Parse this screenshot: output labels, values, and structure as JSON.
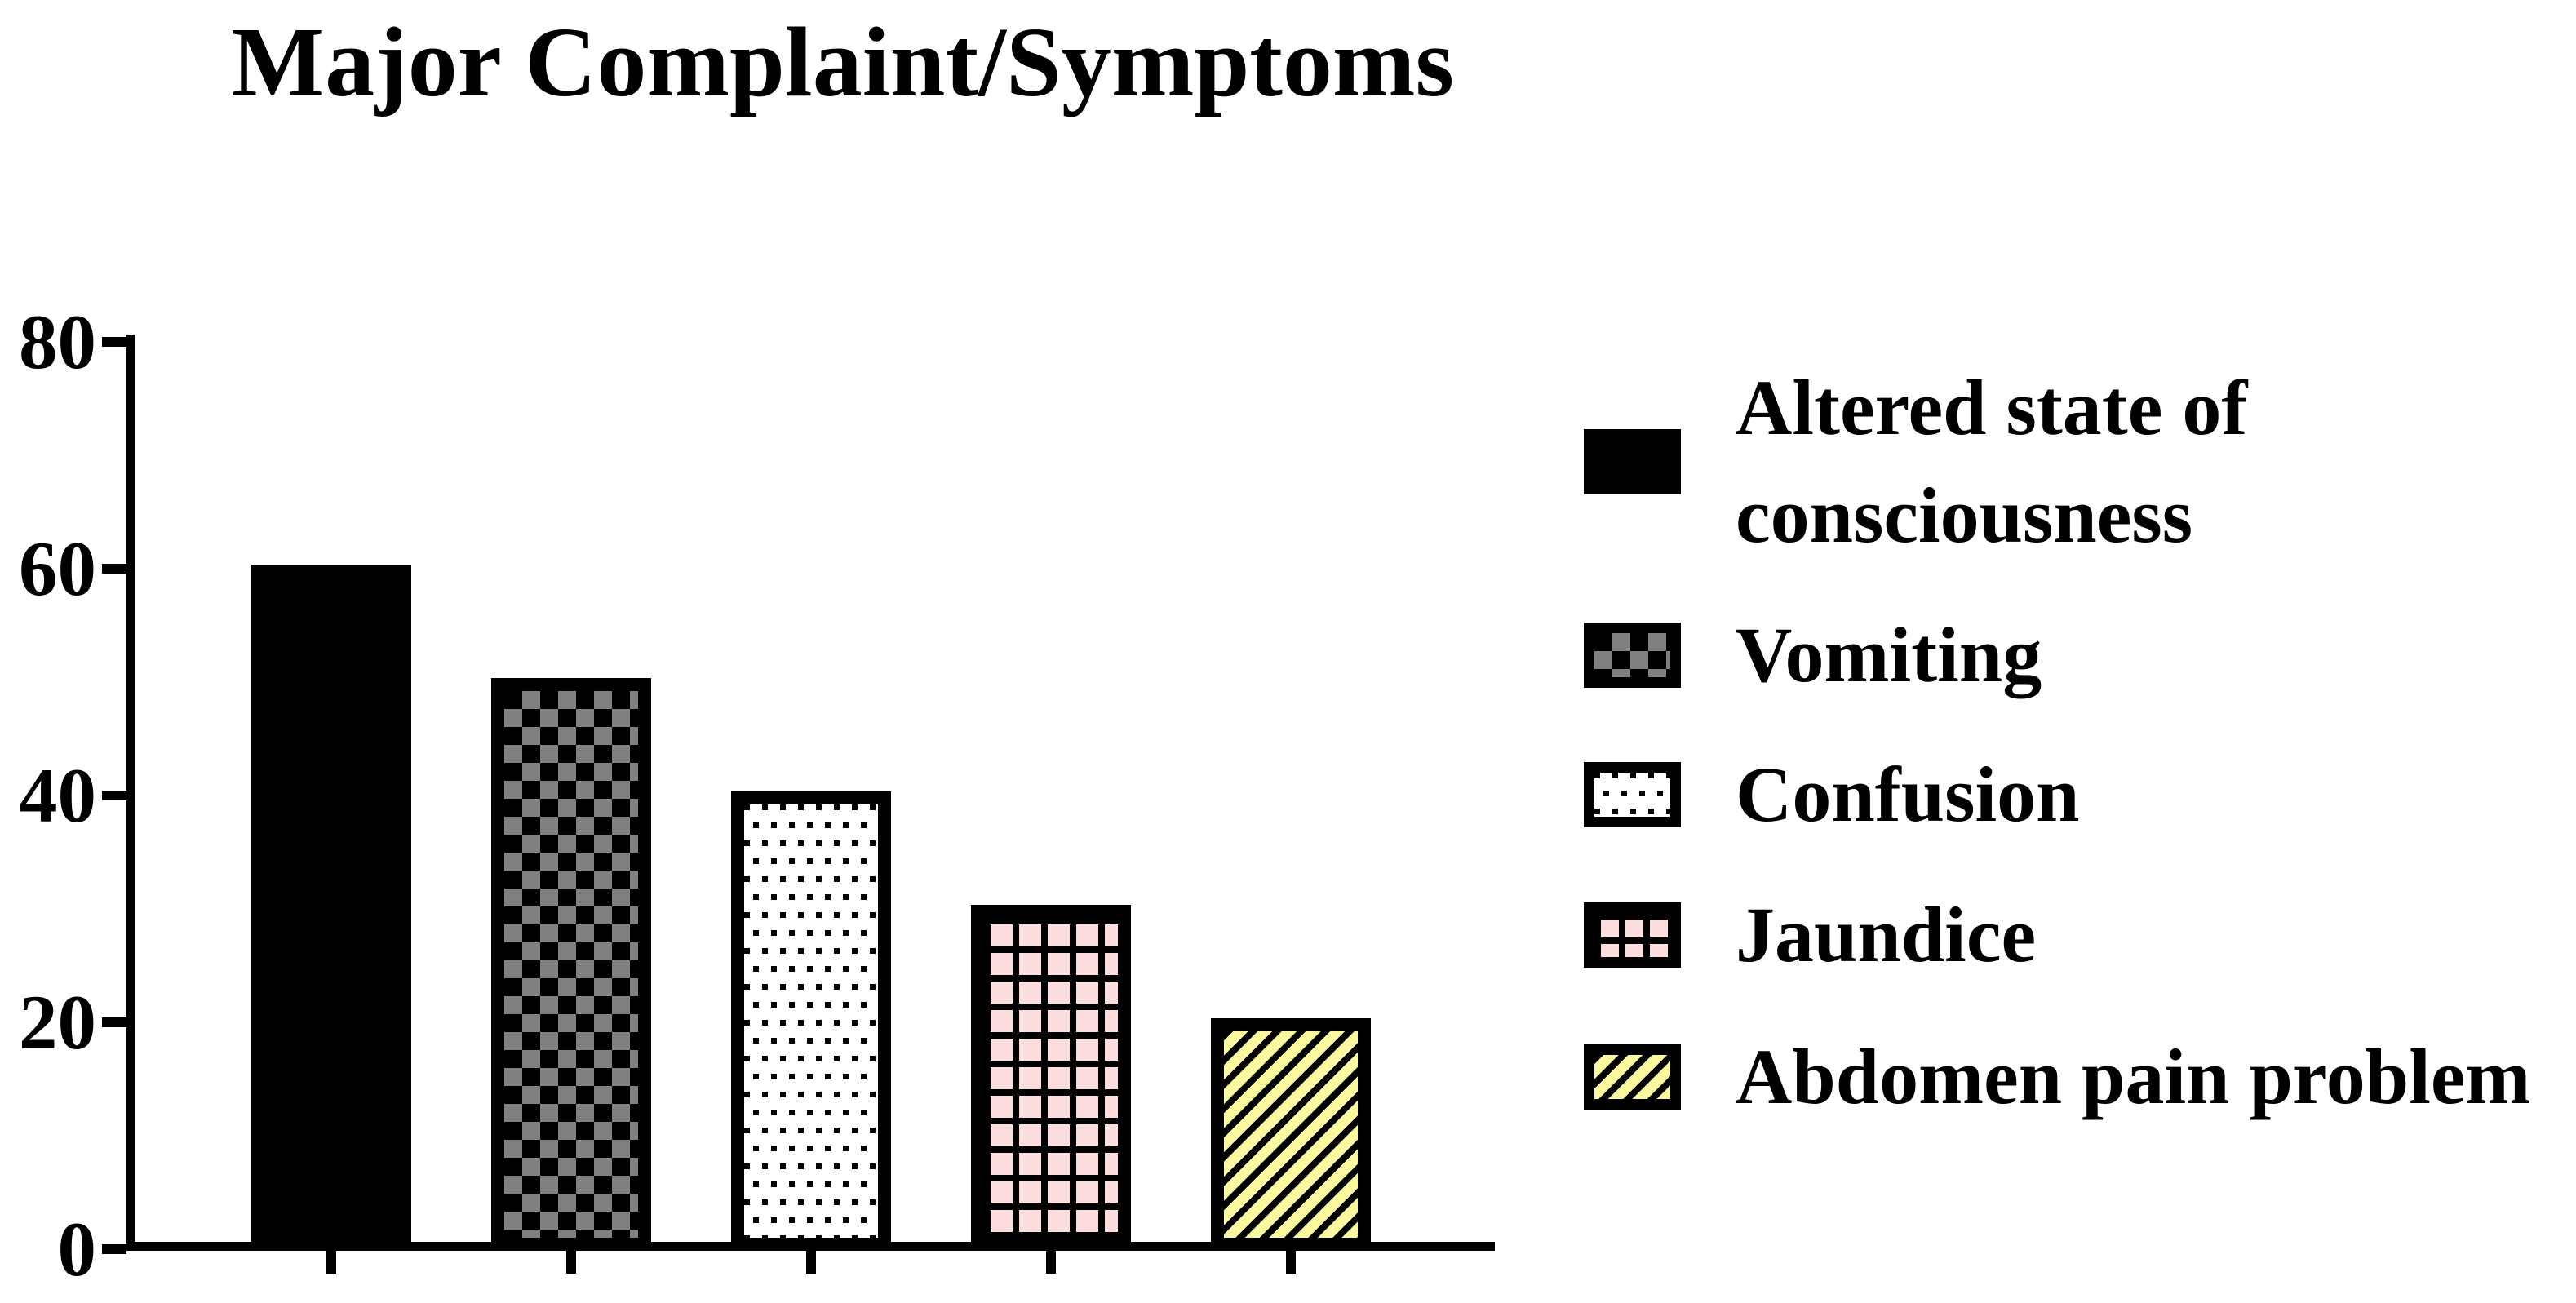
{
  "title": "Major Complaint/Symptoms",
  "colors": {
    "ink": "#000000",
    "checker_gray": "#808080",
    "grid_pink": "#FCDEDE",
    "stripe_yellow": "#FAF8A0",
    "background": "#FFFFFF"
  },
  "chart_data": {
    "type": "bar",
    "title": "Major Complaint/Symptoms",
    "categories": [
      "Altered state of consciousness",
      "Vomiting",
      "Confusion",
      "Jaundice",
      "Abdomen pain problem"
    ],
    "values": [
      60,
      50,
      40,
      30,
      20
    ],
    "xlabel": "",
    "ylabel": "",
    "ylim": [
      0,
      80
    ],
    "yticks": [
      0,
      20,
      40,
      60,
      80
    ],
    "grid": false,
    "legend_position": "right",
    "bar_patterns": [
      "solid",
      "checker",
      "dots",
      "grid",
      "stripes"
    ]
  },
  "legend": {
    "items": [
      {
        "label": "Altered state of consciousness",
        "pattern": "solid"
      },
      {
        "label": "Vomiting",
        "pattern": "checker"
      },
      {
        "label": "Confusion",
        "pattern": "dots"
      },
      {
        "label": "Jaundice",
        "pattern": "grid"
      },
      {
        "label": "Abdomen pain problem",
        "pattern": "stripes"
      }
    ]
  }
}
